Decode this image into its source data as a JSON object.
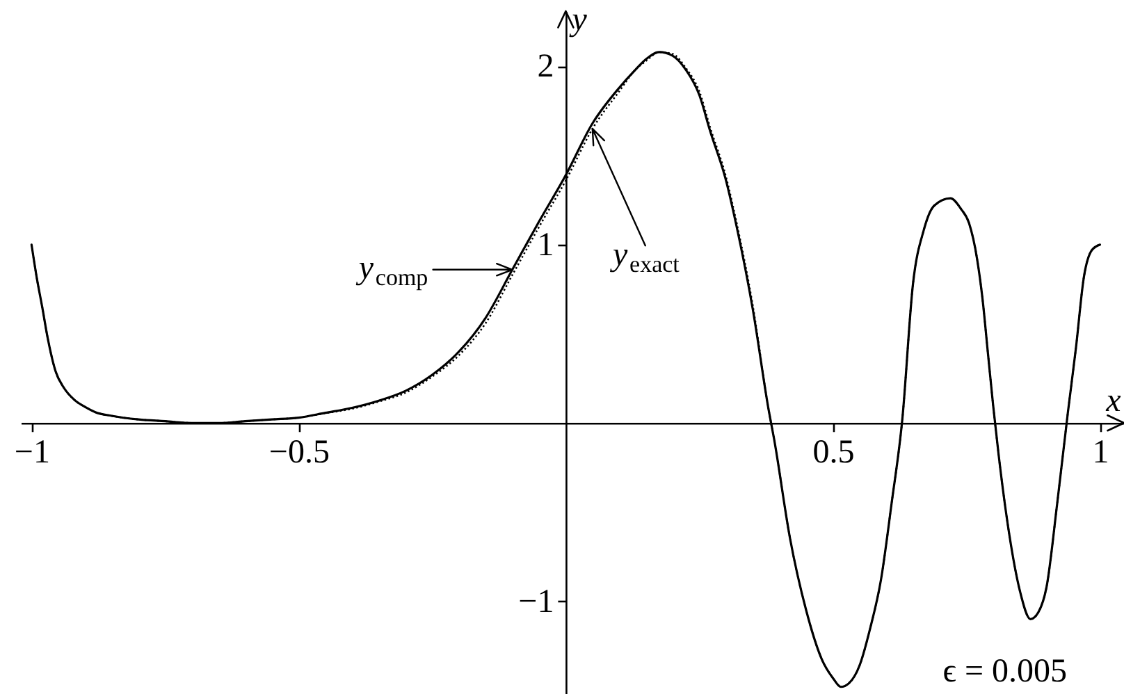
{
  "chart_data": {
    "type": "line",
    "x": [
      -1,
      -0.99,
      -0.98,
      -0.97,
      -0.955,
      -0.94,
      -0.92,
      -0.9,
      -0.88,
      -0.85,
      -0.8,
      -0.75,
      -0.7,
      -0.65,
      -0.6,
      -0.55,
      -0.5,
      -0.45,
      -0.4,
      -0.35,
      -0.3,
      -0.25,
      -0.2,
      -0.15,
      -0.1,
      -0.05,
      0,
      0.05,
      0.1,
      0.13,
      0.15,
      0.175,
      0.2,
      0.225,
      0.25,
      0.27,
      0.3,
      0.32,
      0.35,
      0.38,
      0.39,
      0.42,
      0.45,
      0.48,
      0.5,
      0.515,
      0.53,
      0.55,
      0.57,
      0.59,
      0.61,
      0.63,
      0.65,
      0.67,
      0.69,
      0.72,
      0.74,
      0.755,
      0.77,
      0.78,
      0.79,
      0.8,
      0.81,
      0.83,
      0.85,
      0.87,
      0.885,
      0.9,
      0.92,
      0.94,
      0.955,
      0.97,
      0.985,
      1
    ],
    "series": [
      {
        "color": "#000000",
        "line_style": "solid",
        "values": [
          1.0,
          0.81,
          0.65,
          0.48,
          0.29,
          0.2,
          0.13,
          0.09,
          0.06,
          0.04,
          0.02,
          0.01,
          0.0,
          0.0,
          0.01,
          0.02,
          0.03,
          0.057,
          0.085,
          0.125,
          0.18,
          0.27,
          0.4,
          0.59,
          0.86,
          1.13,
          1.39,
          1.68,
          1.88,
          1.98,
          2.04,
          2.08,
          2.06,
          1.98,
          1.84,
          1.64,
          1.36,
          1.1,
          0.64,
          0.07,
          -0.09,
          -0.65,
          -1.05,
          -1.33,
          -1.43,
          -1.48,
          -1.46,
          -1.36,
          -1.15,
          -0.88,
          -0.45,
          0.02,
          0.78,
          1.08,
          1.22,
          1.26,
          1.2,
          1.12,
          0.92,
          0.7,
          0.4,
          0.1,
          -0.17,
          -0.62,
          -0.94,
          -1.1,
          -1.06,
          -0.92,
          -0.45,
          0.06,
          0.42,
          0.82,
          0.97,
          1.0
        ]
      },
      {
        "color": "#000000",
        "line_style": "dotted",
        "values": [
          1.0,
          0.81,
          0.65,
          0.48,
          0.29,
          0.2,
          0.13,
          0.09,
          0.06,
          0.04,
          0.02,
          0.01,
          0.0,
          0.0,
          0.01,
          0.02,
          0.03,
          0.055,
          0.08,
          0.12,
          0.17,
          0.26,
          0.38,
          0.56,
          0.83,
          1.1,
          1.36,
          1.65,
          1.86,
          1.98,
          2.03,
          2.08,
          2.07,
          1.99,
          1.86,
          1.66,
          1.38,
          1.12,
          0.66,
          0.07,
          -0.09,
          -0.65,
          -1.05,
          -1.33,
          -1.43,
          -1.48,
          -1.46,
          -1.36,
          -1.15,
          -0.88,
          -0.45,
          0.02,
          0.78,
          1.08,
          1.22,
          1.26,
          1.2,
          1.12,
          0.92,
          0.7,
          0.4,
          0.1,
          -0.17,
          -0.62,
          -0.94,
          -1.1,
          -1.06,
          -0.92,
          -0.45,
          0.06,
          0.42,
          0.82,
          0.97,
          1.0
        ]
      }
    ],
    "xlim": [
      -1.02,
      1.045
    ],
    "ylim": [
      -1.52,
      2.31
    ],
    "xticks": [
      -1,
      -0.5,
      0.5,
      1
    ],
    "yticks": [
      -1,
      1,
      2
    ],
    "xlabel": "x",
    "ylabel": "y",
    "annotations": [
      {
        "text": "y$_{comp}$",
        "x": -0.1,
        "y": 0.86
      },
      {
        "text": "y$_{exact}$",
        "x": 0.05,
        "y": 1.65
      },
      "ϵ = 0.005"
    ]
  }
}
